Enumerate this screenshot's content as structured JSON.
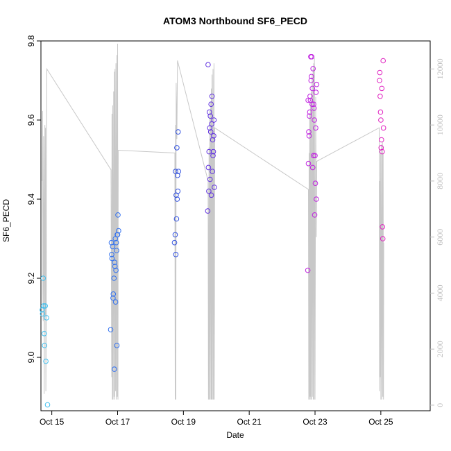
{
  "chart_data": {
    "type": "scatter",
    "title": "ATOM3 Northbound SF6_PECD",
    "xlabel": "Date",
    "ylabel": "SF6_PECD",
    "x_unit": "days since Oct 14 00:00",
    "xlim": [
      14.57,
      26.4
    ],
    "ylim": [
      8.865,
      9.8
    ],
    "ylim_right": [
      -200,
      13000
    ],
    "x_ticks": [
      {
        "value": 14.9,
        "label": "Oct 15"
      },
      {
        "value": 16.9,
        "label": "Oct 17"
      },
      {
        "value": 18.9,
        "label": "Oct 19"
      },
      {
        "value": 20.9,
        "label": "Oct 21"
      },
      {
        "value": 22.9,
        "label": "Oct 23"
      },
      {
        "value": 24.9,
        "label": "Oct 25"
      }
    ],
    "y_ticks": [
      {
        "value": 9.0,
        "label": "9.0"
      },
      {
        "value": 9.2,
        "label": "9.2"
      },
      {
        "value": 9.4,
        "label": "9.4"
      },
      {
        "value": 9.6,
        "label": "9.6"
      },
      {
        "value": 9.8,
        "label": "9.8"
      }
    ],
    "y_ticks_right": [
      {
        "value": 0,
        "label": "0"
      },
      {
        "value": 2000,
        "label": "2000"
      },
      {
        "value": 4000,
        "label": "4000"
      },
      {
        "value": 6000,
        "label": "6000"
      },
      {
        "value": 8000,
        "label": "8000"
      },
      {
        "value": 10000,
        "label": "10000"
      },
      {
        "value": 12000,
        "label": "12000"
      }
    ],
    "altitude_series": {
      "color": "#c8c8c8",
      "points": [
        [
          14.61,
          8000
        ],
        [
          14.62,
          10500
        ],
        [
          14.63,
          4000
        ],
        [
          14.64,
          3000
        ],
        [
          14.65,
          9600
        ],
        [
          14.66,
          6500
        ],
        [
          14.67,
          400
        ],
        [
          14.68,
          6600
        ],
        [
          14.69,
          10000
        ],
        [
          14.7,
          3200
        ],
        [
          14.71,
          9900
        ],
        [
          14.72,
          500
        ],
        [
          14.73,
          3000
        ],
        [
          14.74,
          7000
        ],
        [
          14.75,
          12000
        ],
        [
          16.7,
          8400
        ],
        [
          16.72,
          1000
        ],
        [
          16.73,
          10400
        ],
        [
          16.74,
          200
        ],
        [
          16.75,
          10700
        ],
        [
          16.76,
          200
        ],
        [
          16.78,
          11200
        ],
        [
          16.79,
          300
        ],
        [
          16.8,
          11900
        ],
        [
          16.81,
          200
        ],
        [
          16.82,
          12000
        ],
        [
          16.84,
          500
        ],
        [
          16.85,
          12200
        ],
        [
          16.86,
          200
        ],
        [
          16.88,
          12500
        ],
        [
          16.89,
          300
        ],
        [
          16.9,
          12900
        ],
        [
          16.91,
          200
        ],
        [
          16.92,
          9100
        ],
        [
          18.64,
          9000
        ],
        [
          18.65,
          200
        ],
        [
          18.66,
          10000
        ],
        [
          18.67,
          200
        ],
        [
          18.68,
          11500
        ],
        [
          18.7,
          9500
        ],
        [
          18.72,
          12300
        ],
        [
          19.65,
          8000
        ],
        [
          19.66,
          200
        ],
        [
          19.68,
          9200
        ],
        [
          19.69,
          200
        ],
        [
          19.7,
          10500
        ],
        [
          19.71,
          200
        ],
        [
          19.73,
          10800
        ],
        [
          19.74,
          200
        ],
        [
          19.75,
          11300
        ],
        [
          19.76,
          200
        ],
        [
          19.77,
          11800
        ],
        [
          19.78,
          200
        ],
        [
          19.8,
          12000
        ],
        [
          19.81,
          200
        ],
        [
          19.83,
          12200
        ],
        [
          19.84,
          200
        ],
        [
          19.85,
          9900
        ],
        [
          22.7,
          7700
        ],
        [
          22.71,
          200
        ],
        [
          22.72,
          9000
        ],
        [
          22.73,
          200
        ],
        [
          22.74,
          10400
        ],
        [
          22.75,
          300
        ],
        [
          22.76,
          10800
        ],
        [
          22.77,
          200
        ],
        [
          22.79,
          11200
        ],
        [
          22.8,
          200
        ],
        [
          22.81,
          11800
        ],
        [
          22.82,
          300
        ],
        [
          22.84,
          12000
        ],
        [
          22.85,
          200
        ],
        [
          22.86,
          12200
        ],
        [
          22.87,
          200
        ],
        [
          22.88,
          12400
        ],
        [
          22.9,
          200
        ],
        [
          22.92,
          11000
        ],
        [
          22.94,
          6000
        ],
        [
          22.95,
          8700
        ],
        [
          24.85,
          9900
        ],
        [
          24.86,
          500
        ],
        [
          24.87,
          8000
        ],
        [
          24.88,
          1000
        ],
        [
          24.89,
          9000
        ],
        [
          24.9,
          200
        ],
        [
          24.92,
          9300
        ],
        [
          24.93,
          200
        ],
        [
          24.95,
          9400
        ],
        [
          24.96,
          300
        ],
        [
          24.97,
          9000
        ],
        [
          24.98,
          200
        ],
        [
          24.99,
          5800
        ]
      ]
    },
    "series": [
      {
        "color_start": "#40c0f0",
        "x": [
          14.61,
          14.62,
          14.64,
          14.65,
          14.67,
          14.68,
          14.7,
          14.72,
          14.74,
          14.77
        ],
        "y": [
          9.12,
          9.11,
          9.2,
          9.13,
          9.06,
          9.03,
          9.13,
          8.99,
          9.1,
          8.88
        ]
      },
      {
        "color_start": "#3070f0",
        "x": [
          16.69,
          16.71,
          16.73,
          16.75,
          16.77,
          16.79,
          16.81,
          16.83,
          16.85,
          16.87,
          16.89,
          16.91,
          16.93,
          16.72,
          16.76,
          16.8,
          16.84,
          16.88,
          16.82,
          16.86,
          16.9
        ],
        "y": [
          9.07,
          9.29,
          9.25,
          9.28,
          9.16,
          9.2,
          9.24,
          9.3,
          9.22,
          9.27,
          9.31,
          9.36,
          9.32,
          9.26,
          9.15,
          8.97,
          9.14,
          9.03,
          9.23,
          9.29,
          9.31
        ]
      },
      {
        "color_start": "#3050e0",
        "x": [
          18.63,
          18.65,
          18.67,
          18.69,
          18.71,
          18.73,
          18.75,
          18.66,
          18.7,
          18.74,
          18.68,
          18.72
        ],
        "y": [
          9.29,
          9.31,
          9.26,
          9.35,
          9.4,
          9.42,
          9.47,
          9.47,
          9.53,
          9.57,
          9.41,
          9.46
        ]
      },
      {
        "color_start": "#6030e0",
        "x": [
          19.64,
          19.66,
          19.68,
          19.7,
          19.72,
          19.74,
          19.76,
          19.78,
          19.8,
          19.82,
          19.84,
          19.65,
          19.69,
          19.73,
          19.77,
          19.81,
          19.67,
          19.71,
          19.75,
          19.79,
          19.83
        ],
        "y": [
          9.37,
          9.48,
          9.52,
          9.58,
          9.61,
          9.64,
          9.59,
          9.47,
          9.51,
          9.56,
          9.43,
          9.74,
          9.62,
          9.57,
          9.66,
          9.52,
          9.42,
          9.45,
          9.41,
          9.55,
          9.6
        ]
      },
      {
        "color_start": "#c020e0",
        "x": [
          22.68,
          22.7,
          22.72,
          22.74,
          22.76,
          22.78,
          22.8,
          22.82,
          22.84,
          22.86,
          22.88,
          22.9,
          22.92,
          22.94,
          22.69,
          22.73,
          22.77,
          22.81,
          22.85,
          22.89,
          22.93,
          22.71,
          22.75,
          22.79,
          22.83,
          22.87,
          22.91,
          22.95
        ],
        "y": [
          9.22,
          9.49,
          9.56,
          9.62,
          9.65,
          9.7,
          9.76,
          9.68,
          9.73,
          9.64,
          9.6,
          9.51,
          9.58,
          9.4,
          9.65,
          9.61,
          9.76,
          9.64,
          9.51,
          9.36,
          9.67,
          9.57,
          9.66,
          9.71,
          9.48,
          9.63,
          9.44,
          9.69
        ]
      },
      {
        "color_start": "#e020c0",
        "x": [
          24.86,
          24.88,
          24.9,
          24.92,
          24.94,
          24.96,
          24.98,
          24.87,
          24.91,
          24.95,
          24.89,
          24.93,
          24.97
        ],
        "y": [
          9.7,
          9.66,
          9.6,
          9.55,
          9.52,
          9.3,
          9.58,
          9.72,
          9.53,
          9.33,
          9.62,
          9.68,
          9.75
        ]
      }
    ]
  }
}
